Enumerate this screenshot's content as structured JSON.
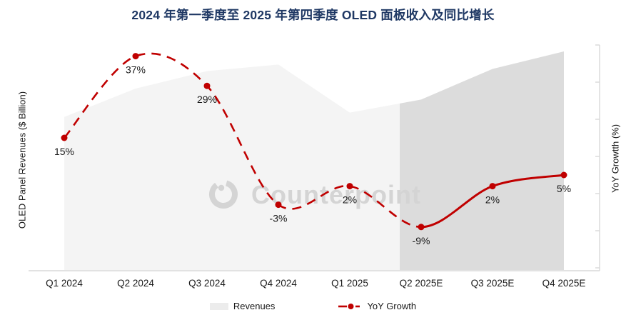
{
  "title": {
    "text": "2024 年第一季度至 2025 年第四季度 OLED 面板收入及同比增长",
    "color": "#1f3864"
  },
  "watermark": {
    "text": "Counterpoint",
    "color": "#d4d4d4",
    "logo": "counterpoint-logo"
  },
  "axes": {
    "left_label": "OLED Panel Revenues ($ Billion)",
    "right_label": "YoY Growtth (%)",
    "right_axis_min": -20,
    "right_axis_max": 40,
    "right_axis_tick_step": 10,
    "axis_color": "#d9d9d9"
  },
  "legend": {
    "revenues_label": "Revenues",
    "yoy_label": "YoY Growth"
  },
  "colors": {
    "line_red": "#c00000",
    "area_actual": "#f4f4f4",
    "area_estimate": "#dcdcdc",
    "legend_swatch": "#ececec"
  },
  "chart_data": {
    "type": "combo",
    "categories": [
      "Q1 2024",
      "Q2 2024",
      "Q3 2024",
      "Q4 2024",
      "Q1 2025",
      "Q2 2025E",
      "Q3 2025E",
      "Q4 2025E"
    ],
    "series": [
      {
        "name": "Revenues",
        "type": "area",
        "axis": "left",
        "note": "left axis has no numeric ticks; values are relative heights (Q4 2025E = 100)",
        "values_relative": [
          70,
          83,
          91,
          94,
          72,
          78,
          92,
          100
        ],
        "estimate_start_category": "Q2 2025E",
        "color_actual": "#f4f4f4",
        "color_estimate": "#dcdcdc"
      },
      {
        "name": "YoY Growth",
        "type": "line",
        "axis": "right",
        "values": [
          15,
          37,
          29,
          -3,
          2,
          -9,
          2,
          5
        ],
        "point_labels": [
          "15%",
          "37%",
          "29%",
          "-3%",
          "2%",
          "-9%",
          "2%",
          "5%"
        ],
        "color": "#c00000",
        "dashed_through_index": 5,
        "solid_from_index": 5,
        "marker": "circle"
      }
    ],
    "right_ylim": [
      -20,
      40
    ],
    "grid": false,
    "legend_position": "bottom"
  }
}
